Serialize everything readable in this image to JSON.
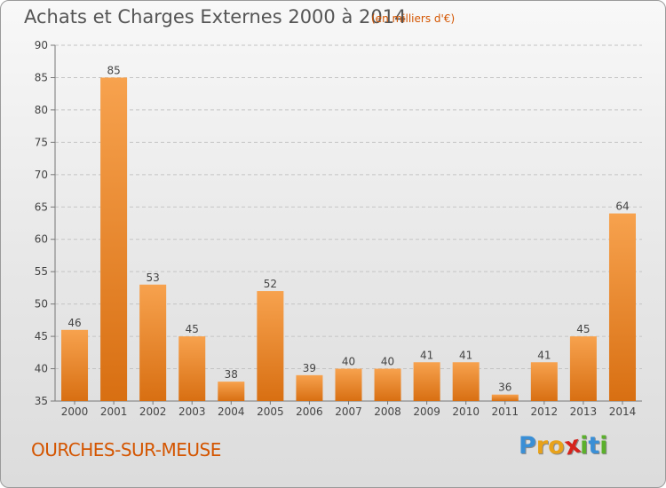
{
  "header": {
    "title": "Achats et Charges Externes 2000 à 2014",
    "subtitle": "(en milliers d'€)"
  },
  "footer": {
    "commune": "OURCHES-SUR-MEUSE",
    "logo": "Proxiti",
    "logo_letters": [
      {
        "ch": "P",
        "color": "#3a8fd6"
      },
      {
        "ch": "r",
        "color": "#e8a21a"
      },
      {
        "ch": "o",
        "color": "#e8a21a"
      },
      {
        "ch": "x",
        "color": "#d6231c"
      },
      {
        "ch": "i",
        "color": "#5bb02c"
      },
      {
        "ch": "t",
        "color": "#3a8fd6"
      },
      {
        "ch": "i",
        "color": "#5bb02c"
      }
    ]
  },
  "chart_data": {
    "type": "bar",
    "title": "Achats et Charges Externes 2000 à 2014",
    "subtitle": "(en milliers d'€)",
    "categories": [
      "2000",
      "2001",
      "2002",
      "2003",
      "2004",
      "2005",
      "2006",
      "2007",
      "2008",
      "2009",
      "2010",
      "2011",
      "2012",
      "2013",
      "2014"
    ],
    "values": [
      46,
      85,
      53,
      45,
      38,
      52,
      39,
      40,
      40,
      41,
      41,
      36,
      41,
      45,
      64
    ],
    "data_labels": [
      "46",
      "85",
      "53",
      "45",
      "38",
      "52",
      "39",
      "40",
      "40",
      "41",
      "41",
      "36",
      "41",
      "45",
      "64"
    ],
    "yticks": [
      35,
      40,
      45,
      50,
      55,
      60,
      65,
      70,
      75,
      80,
      85,
      90
    ],
    "ylim": [
      35,
      90
    ],
    "xlabel": "",
    "ylabel": "",
    "grid": "horizontal dashed",
    "bar_color_top": "#f7a24e",
    "bar_color_bottom": "#d86f12"
  }
}
